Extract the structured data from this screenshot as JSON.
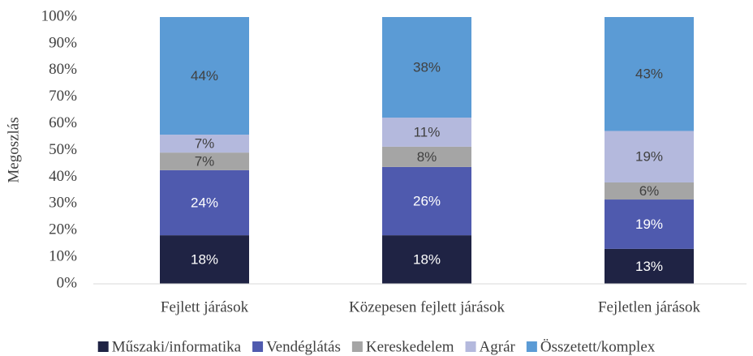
{
  "chart_data": {
    "type": "stacked_bar",
    "y_label": "Megoszlás",
    "categories": [
      "Fejlett járások",
      "Közepesen fejlett járások",
      "Fejletlen járások"
    ],
    "series": [
      {
        "name": "Műszaki/informatika",
        "color": "#1f2344",
        "label_color": "#ffffff",
        "values": [
          18.2,
          18.2,
          13.1
        ],
        "value_labels": [
          "18%",
          "18%",
          "13%"
        ]
      },
      {
        "name": "Vendéglátás",
        "color": "#4f5aae",
        "label_color": "#ffffff",
        "values": [
          24.4,
          25.6,
          18.5
        ],
        "value_labels": [
          "24%",
          "26%",
          "19%"
        ]
      },
      {
        "name": "Kereskedelem",
        "color": "#a5a5a5",
        "label_color": "#404040",
        "values": [
          6.6,
          7.6,
          6.4
        ],
        "value_labels": [
          "7%",
          "8%",
          "6%"
        ]
      },
      {
        "name": "Agrár",
        "color": "#b4b9dd",
        "label_color": "#404040",
        "values": [
          6.7,
          10.9,
          19.3
        ],
        "value_labels": [
          "7%",
          "11%",
          "19%"
        ]
      },
      {
        "name": "Összetett/komplex",
        "color": "#5b9bd5",
        "label_color": "#404040",
        "values": [
          44.1,
          37.7,
          42.7
        ],
        "value_labels": [
          "44%",
          "38%",
          "43%"
        ]
      }
    ],
    "ylim": [
      0,
      100
    ],
    "yticks": [
      {
        "value": 0,
        "label": "0%"
      },
      {
        "value": 10,
        "label": "10%"
      },
      {
        "value": 20,
        "label": "20%"
      },
      {
        "value": 30,
        "label": "30%"
      },
      {
        "value": 40,
        "label": "40%"
      },
      {
        "value": 50,
        "label": "50%"
      },
      {
        "value": 60,
        "label": "60%"
      },
      {
        "value": 70,
        "label": "70%"
      },
      {
        "value": 80,
        "label": "80%"
      },
      {
        "value": 90,
        "label": "90%"
      },
      {
        "value": 100,
        "label": "100%"
      }
    ],
    "legend": "bottom"
  }
}
